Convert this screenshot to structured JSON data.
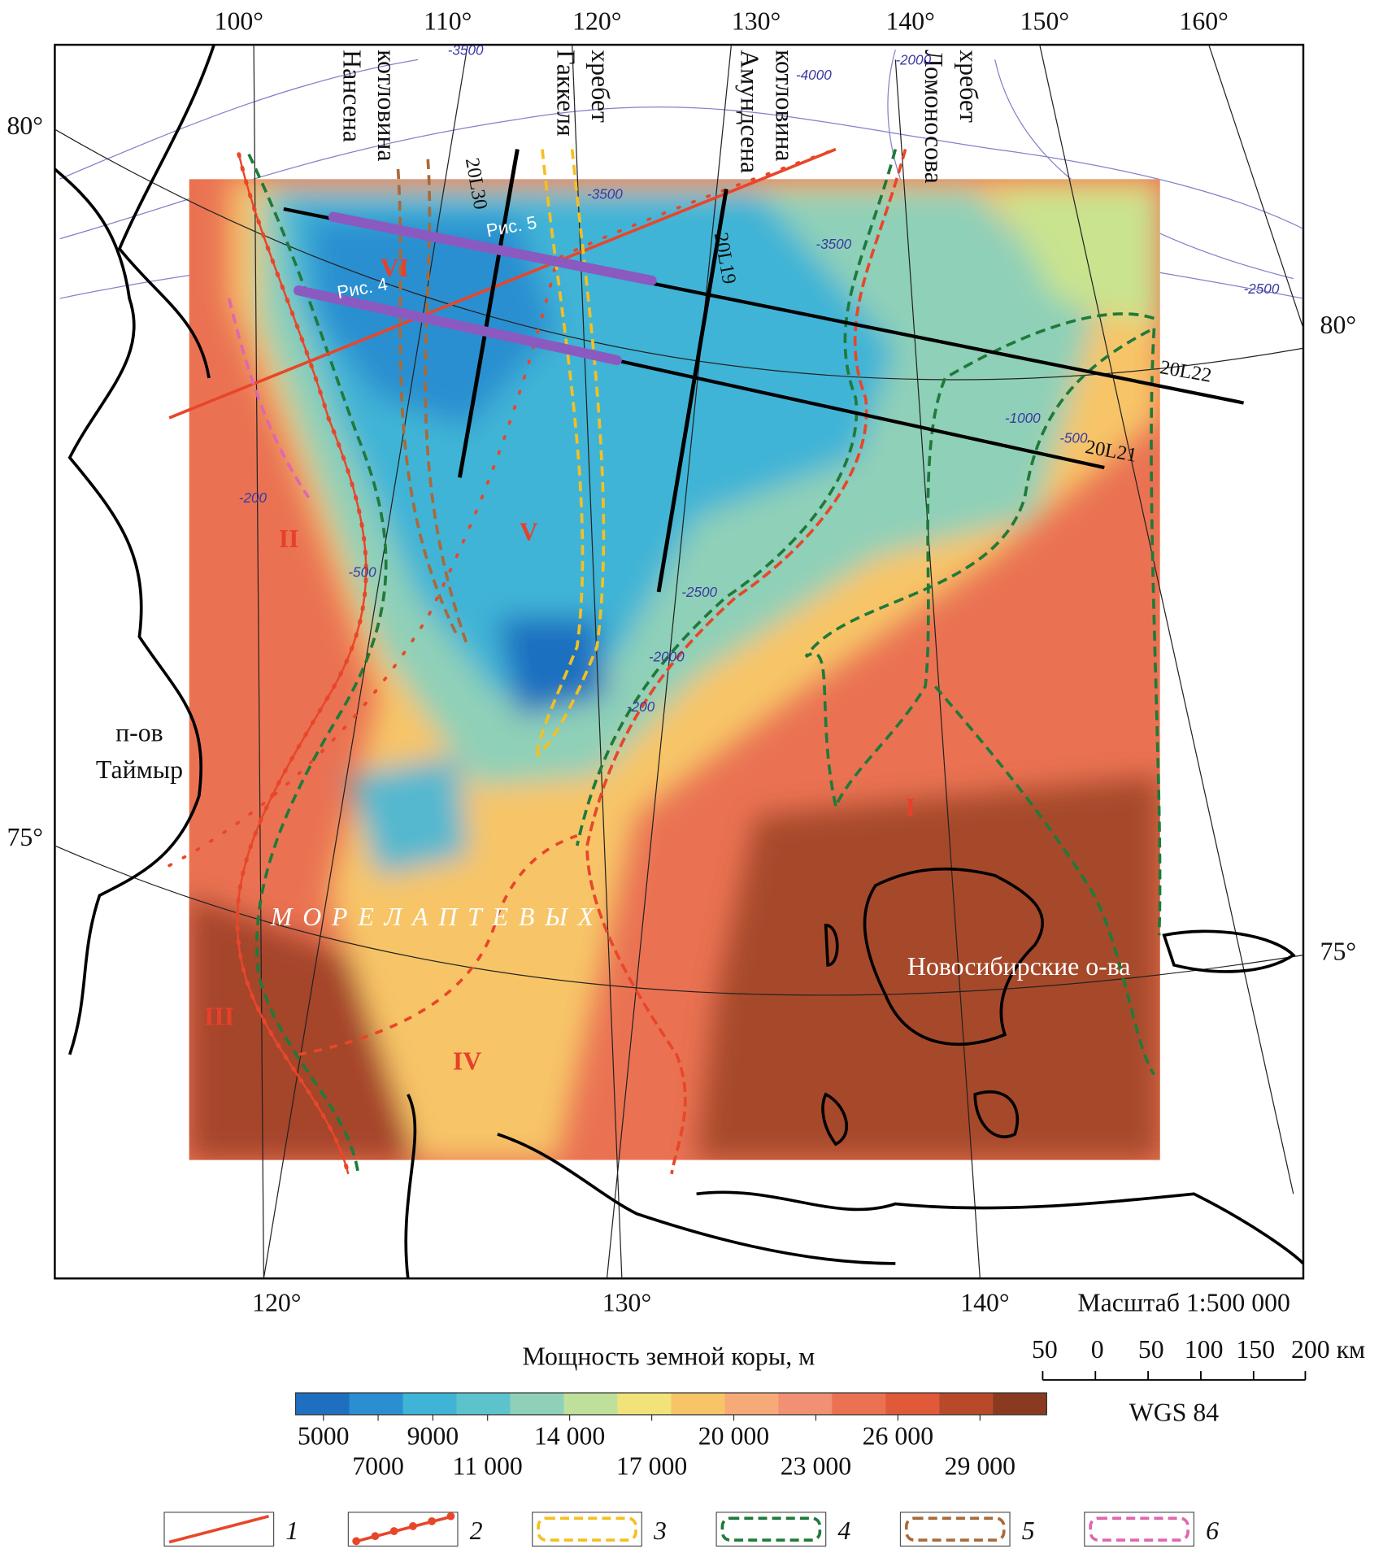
{
  "map": {
    "graticule_top": [
      "100°",
      "110°",
      "120°",
      "130°",
      "140°",
      "150°",
      "160°"
    ],
    "graticule_bottom": [
      "120°",
      "130°",
      "140°"
    ],
    "graticule_left": [
      "80°",
      "75°"
    ],
    "graticule_right": [
      "80°",
      "75°"
    ],
    "features": [
      {
        "lines": [
          "котловина",
          "Нансена"
        ]
      },
      {
        "lines": [
          "хребет",
          "Гаккеля"
        ]
      },
      {
        "lines": [
          "котловина",
          "Амундсена"
        ]
      },
      {
        "lines": [
          "хребет",
          "Ломоносова"
        ]
      }
    ],
    "profiles": [
      "20L30",
      "20L19",
      "20L22",
      "20L21"
    ],
    "figure_refs": [
      "Рис. 5",
      "Рис. 4"
    ],
    "zones": [
      "VI",
      "II",
      "V",
      "III",
      "IV",
      "I"
    ],
    "places": [
      {
        "lines": [
          "п-ов",
          "Таймыр"
        ]
      },
      {
        "lines": [
          "М О Р Е    Л А П Т Е В Ы Х"
        ]
      },
      {
        "lines": [
          "Новосибирские о-ва"
        ]
      }
    ],
    "contour_labels": [
      "-3500",
      "-3500",
      "-4000",
      "-2000",
      "-3500",
      "-2500",
      "-1000",
      "-500",
      "-2500",
      "-2000",
      "-200",
      "-200",
      "-500"
    ]
  },
  "colorbar": {
    "title": "Мощность земной коры, м",
    "colors": [
      "#1f6fc0",
      "#2a8fd0",
      "#3fb4d6",
      "#5cc3cc",
      "#8fd0b8",
      "#bfe09a",
      "#f2e27a",
      "#f7c567",
      "#f6aa78",
      "#f19072",
      "#ea7253",
      "#e05a3a",
      "#b84a2b",
      "#8a3a20"
    ],
    "ticks": [
      {
        "value": 5000,
        "label": "5000"
      },
      {
        "value": 7000,
        "label": "7000"
      },
      {
        "value": 9000,
        "label": "9000"
      },
      {
        "value": 11000,
        "label": "11 000"
      },
      {
        "value": 14000,
        "label": "14 000"
      },
      {
        "value": 17000,
        "label": "17 000"
      },
      {
        "value": 20000,
        "label": "20 000"
      },
      {
        "value": 23000,
        "label": "23 000"
      },
      {
        "value": 26000,
        "label": "26 000"
      },
      {
        "value": 29000,
        "label": "29 000"
      }
    ]
  },
  "scale": {
    "title": "Масштаб 1:500 000",
    "ticks": [
      "50",
      "0",
      "50",
      "100",
      "150",
      "200 км"
    ],
    "datum": "WGS 84"
  },
  "legend": {
    "items": [
      {
        "label": "1",
        "color": "#e8462a",
        "style": "fault"
      },
      {
        "label": "2",
        "color": "#e8462a",
        "style": "dots"
      },
      {
        "label": "3",
        "color": "#f4c020",
        "style": "band"
      },
      {
        "label": "4",
        "color": "#1f7a3a",
        "style": "band"
      },
      {
        "label": "5",
        "color": "#a86a3a",
        "style": "band"
      },
      {
        "label": "6",
        "color": "#e066b0",
        "style": "band"
      }
    ]
  }
}
